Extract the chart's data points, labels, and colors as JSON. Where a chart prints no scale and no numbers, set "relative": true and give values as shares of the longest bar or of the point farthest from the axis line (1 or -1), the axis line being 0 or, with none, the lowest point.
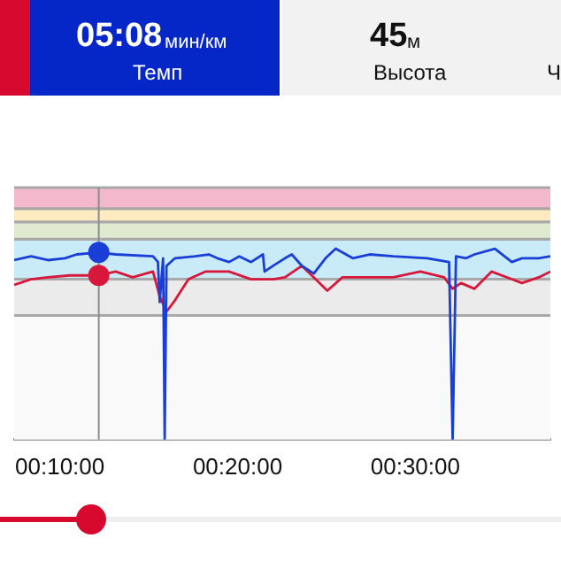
{
  "chart_data": {
    "type": "line",
    "relative": true,
    "marker": "none",
    "legend": false,
    "annotations": [
      "05:08",
      "мин/км",
      "Темп",
      "45",
      "м",
      "Высота",
      "Ч"
    ],
    "xlim": [
      7.43,
      37.6
    ],
    "xticks": [
      {
        "value": 10,
        "label": "00:10:00"
      },
      {
        "value": 20,
        "label": "00:20:00"
      },
      {
        "value": 30,
        "label": "00:30:00"
      }
    ],
    "bands": [
      {
        "axis": "y",
        "from": 0.65,
        "to": 0.84,
        "color": "#ebebeb"
      },
      {
        "axis": "y",
        "from": 0.84,
        "to": 1.05,
        "color": "#c9ebf7"
      },
      {
        "axis": "y",
        "from": 1.05,
        "to": 1.14,
        "color": "#e0ead0"
      },
      {
        "axis": "y",
        "from": 1.14,
        "to": 1.21,
        "color": "#fcebc0"
      },
      {
        "axis": "y",
        "from": 1.21,
        "to": 1.32,
        "color": "#f4b8cc"
      }
    ],
    "ref_lines": [
      {
        "axis": "x",
        "value": 12.19,
        "color": "#8c8c8c"
      }
    ],
    "series": [
      {
        "color": "#1a3fd6",
        "x": [
          7.43,
          8.38,
          9.33,
          10.29,
          10.95,
          12.19,
          13.14,
          15.24,
          15.52,
          15.62,
          15.81,
          15.9,
          16.0,
          16.48,
          17.62,
          18.38,
          18.86,
          19.52,
          20.1,
          20.76,
          21.43,
          21.52,
          22.0,
          22.67,
          23.05,
          23.62,
          24.29,
          24.95,
          25.52,
          26.48,
          27.43,
          28.76,
          30.67,
          31.9,
          32.1,
          32.29,
          32.86,
          33.33,
          34.48,
          35.43,
          36.0,
          36.95,
          37.6
        ],
        "values": [
          0.94,
          0.96,
          0.94,
          0.95,
          0.97,
          0.98,
          0.97,
          0.96,
          0.93,
          0.72,
          0.95,
          0,
          0.91,
          0.95,
          0.96,
          0.97,
          0.95,
          0.93,
          0.96,
          0.93,
          0.97,
          0.88,
          0.91,
          0.95,
          0.97,
          0.91,
          0.87,
          0.95,
          1,
          0.95,
          0.97,
          0.96,
          0.95,
          0.93,
          0,
          0.96,
          0.95,
          0.97,
          1,
          0.93,
          0.95,
          0.95,
          0.96
        ]
      },
      {
        "color": "#d8183a",
        "x": [
          7.43,
          8.38,
          9.33,
          10.57,
          12.19,
          13.14,
          14.1,
          15.24,
          15.62,
          16.0,
          16.48,
          17.24,
          18.19,
          19.52,
          20.76,
          22.0,
          22.67,
          23.62,
          24.29,
          25.05,
          25.9,
          27.14,
          28.76,
          30.29,
          31.62,
          32.1,
          32.57,
          33.33,
          34.29,
          35.43,
          36.0,
          36.95,
          37.6
        ],
        "values": [
          0.81,
          0.84,
          0.85,
          0.86,
          0.86,
          0.88,
          0.85,
          0.88,
          0.75,
          0.67,
          0.73,
          0.84,
          0.88,
          0.88,
          0.84,
          0.84,
          0.85,
          0.91,
          0.85,
          0.78,
          0.85,
          0.85,
          0.85,
          0.88,
          0.85,
          0.79,
          0.82,
          0.79,
          0.88,
          0.84,
          0.82,
          0.85,
          0.88
        ]
      },
      {
        "type": "scatter",
        "marker": "circle",
        "color": "#1a3fd6",
        "x": [
          12.19
        ],
        "values": [
          0.98
        ]
      },
      {
        "type": "scatter",
        "marker": "circle",
        "color": "#d8183a",
        "x": [
          12.19
        ],
        "values": [
          0.86
        ]
      }
    ]
  }
}
